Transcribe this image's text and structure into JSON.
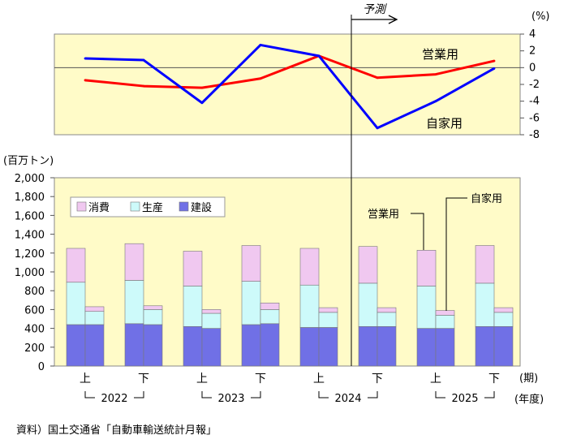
{
  "source": "資料）国土交通省「自動車輸送統計月報」",
  "forecast_label": "予測",
  "colors": {
    "panel_bg": "#fffbc8",
    "commercial_line": "#ff0000",
    "private_line": "#0000ff",
    "construction": "#7070e6",
    "production": "#cdfafa",
    "consumption": "#f0c8f0"
  },
  "chart_data": [
    {
      "type": "line",
      "unit_label": "(%)",
      "yticks": [
        "4",
        "2",
        "0",
        "-2",
        "-4",
        "-6",
        "-8"
      ],
      "ylim": [
        -8,
        4
      ],
      "grid": false,
      "series": [
        {
          "name": "営業用",
          "values": [
            -1.5,
            -2.2,
            -2.4,
            -1.3,
            1.4,
            -1.2,
            -0.8,
            0.8
          ]
        },
        {
          "name": "自家用",
          "values": [
            1.1,
            0.9,
            -4.2,
            2.7,
            1.4,
            -7.2,
            -4.0,
            -0.1
          ]
        }
      ]
    },
    {
      "type": "bar",
      "unit_label": "(百万トン)",
      "ylim": [
        0,
        2000
      ],
      "yticks": [
        "2,000",
        "1,800",
        "1,600",
        "1,400",
        "1,200",
        "1,000",
        "800",
        "600",
        "400",
        "200",
        "0"
      ],
      "half_labels": [
        "上",
        "下",
        "上",
        "下",
        "上",
        "下",
        "上",
        "下"
      ],
      "years": [
        "2022",
        "2023",
        "2024",
        "2025"
      ],
      "x_unit_period": "(期)",
      "x_unit_year": "(年度)",
      "legend": [
        "消費",
        "生産",
        "建設"
      ],
      "legend_position": "top-left",
      "annotations": [
        "営業用",
        "自家用"
      ],
      "periods": [
        {
          "commercial": {
            "construction": 440,
            "production": 450,
            "consumption": 360
          },
          "private": {
            "construction": 440,
            "production": 140,
            "consumption": 50
          }
        },
        {
          "commercial": {
            "construction": 450,
            "production": 460,
            "consumption": 390
          },
          "private": {
            "construction": 440,
            "production": 160,
            "consumption": 40
          }
        },
        {
          "commercial": {
            "construction": 420,
            "production": 430,
            "consumption": 370
          },
          "private": {
            "construction": 400,
            "production": 160,
            "consumption": 40
          }
        },
        {
          "commercial": {
            "construction": 440,
            "production": 460,
            "consumption": 380
          },
          "private": {
            "construction": 450,
            "production": 150,
            "consumption": 70
          }
        },
        {
          "commercial": {
            "construction": 410,
            "production": 450,
            "consumption": 390
          },
          "private": {
            "construction": 410,
            "production": 160,
            "consumption": 50
          }
        },
        {
          "commercial": {
            "construction": 420,
            "production": 460,
            "consumption": 390
          },
          "private": {
            "construction": 420,
            "production": 150,
            "consumption": 50
          }
        },
        {
          "commercial": {
            "construction": 400,
            "production": 450,
            "consumption": 380
          },
          "private": {
            "construction": 400,
            "production": 140,
            "consumption": 50
          }
        },
        {
          "commercial": {
            "construction": 420,
            "production": 460,
            "consumption": 400
          },
          "private": {
            "construction": 420,
            "production": 150,
            "consumption": 50
          }
        }
      ]
    }
  ]
}
